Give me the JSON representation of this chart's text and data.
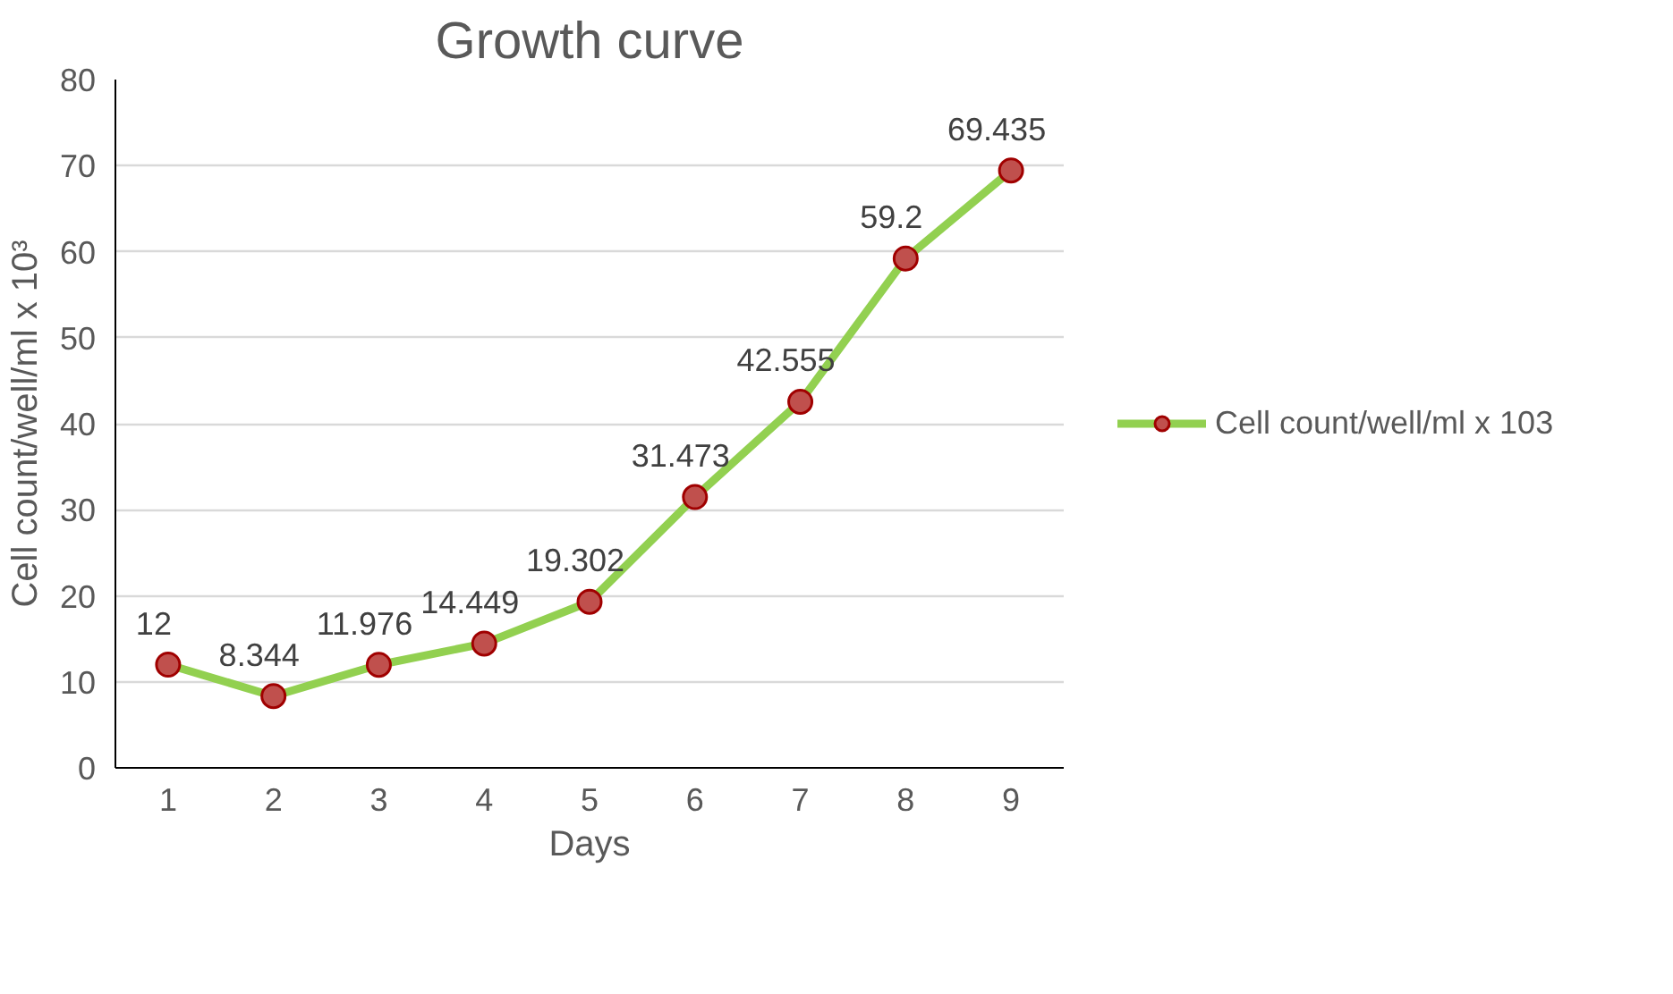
{
  "chart_data": {
    "type": "line",
    "title": "Growth curve",
    "xlabel": "Days",
    "ylabel": "Cell count/well/ml x 10³",
    "categories": [
      "1",
      "2",
      "3",
      "4",
      "5",
      "6",
      "7",
      "8",
      "9"
    ],
    "series": [
      {
        "name": "Cell count/well/ml x 103",
        "color": "#92d050",
        "values": [
          12,
          8.344,
          11.976,
          14.449,
          19.302,
          31.473,
          42.555,
          59.2,
          69.435
        ]
      }
    ],
    "ylim": [
      0,
      80
    ],
    "yticks": [
      0,
      10,
      20,
      30,
      40,
      50,
      60,
      70,
      80
    ],
    "grid": "y",
    "legend": "right",
    "marker": "circle",
    "data_labels": true
  }
}
